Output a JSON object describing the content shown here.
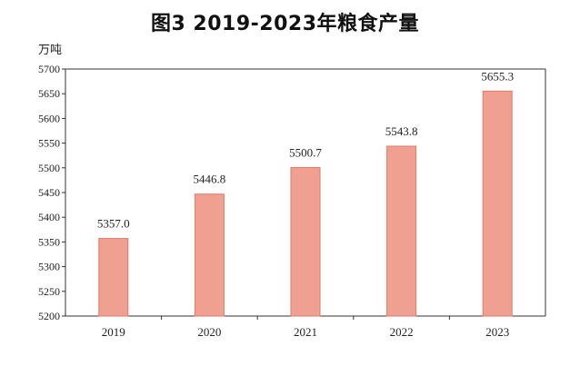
{
  "chart_data": {
    "type": "bar",
    "title": "图3 2019-2023年粮食产量",
    "ylabel": "万吨",
    "categories": [
      "2019",
      "2020",
      "2021",
      "2022",
      "2023"
    ],
    "values": [
      5357.0,
      5446.8,
      5500.7,
      5543.8,
      5655.3
    ],
    "value_labels": [
      "5357.0",
      "5446.8",
      "5500.7",
      "5543.8",
      "5655.3"
    ],
    "ylim": [
      5200,
      5700
    ],
    "yticks": [
      5200,
      5250,
      5300,
      5350,
      5400,
      5450,
      5500,
      5550,
      5600,
      5650,
      5700
    ],
    "grid": false,
    "bar_color": "#f0a090",
    "bar_edge_color": "#e07a6a"
  }
}
